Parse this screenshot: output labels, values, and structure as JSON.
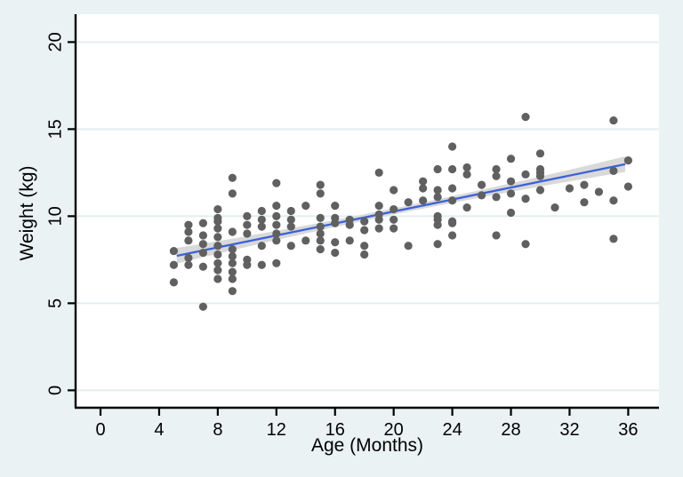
{
  "figure": {
    "background": "#EAF2F3",
    "plot_background": "#FFFFFF",
    "grid_color": "#E3EEF1",
    "axis_color": "#000000",
    "point_color": "#606060",
    "fit_line_color": "#3B62D9",
    "ci_band_color": "#D9D9D9"
  },
  "chart_data": {
    "type": "scatter",
    "title": "",
    "xlabel": "Age (Months)",
    "ylabel": "Weight (kg)",
    "x_ticks": [
      0,
      4,
      8,
      12,
      16,
      20,
      24,
      28,
      32,
      36
    ],
    "y_ticks": [
      0,
      5,
      10,
      15,
      20
    ],
    "xlim": [
      -1.7,
      38.1
    ],
    "ylim": [
      -1.0,
      21.6
    ],
    "grid": "horizontal",
    "legend": "none",
    "points": [
      [
        5,
        8.0
      ],
      [
        5,
        7.2
      ],
      [
        5,
        6.2
      ],
      [
        6,
        9.5
      ],
      [
        6,
        9.1
      ],
      [
        6,
        8.6
      ],
      [
        6,
        7.6
      ],
      [
        6,
        7.2
      ],
      [
        7,
        9.6
      ],
      [
        7,
        8.9
      ],
      [
        7,
        8.4
      ],
      [
        7,
        7.9
      ],
      [
        7,
        7.1
      ],
      [
        7,
        4.8
      ],
      [
        8,
        10.4
      ],
      [
        8,
        9.9
      ],
      [
        8,
        9.7
      ],
      [
        8,
        9.3
      ],
      [
        8,
        8.8
      ],
      [
        8,
        8.3
      ],
      [
        8,
        7.8
      ],
      [
        8,
        7.3
      ],
      [
        8,
        6.9
      ],
      [
        8,
        6.4
      ],
      [
        9,
        12.2
      ],
      [
        9,
        11.3
      ],
      [
        9,
        9.1
      ],
      [
        9,
        8.1
      ],
      [
        9,
        7.7
      ],
      [
        9,
        7.3
      ],
      [
        9,
        6.8
      ],
      [
        9,
        6.4
      ],
      [
        9,
        5.7
      ],
      [
        10,
        10.0
      ],
      [
        10,
        9.5
      ],
      [
        10,
        9.0
      ],
      [
        10,
        7.5
      ],
      [
        10,
        7.2
      ],
      [
        11,
        10.3
      ],
      [
        11,
        9.8
      ],
      [
        11,
        9.4
      ],
      [
        11,
        8.3
      ],
      [
        11,
        7.2
      ],
      [
        12,
        11.9
      ],
      [
        12,
        10.6
      ],
      [
        12,
        10.0
      ],
      [
        12,
        9.5
      ],
      [
        12,
        9.0
      ],
      [
        12,
        8.6
      ],
      [
        12,
        7.3
      ],
      [
        13,
        10.3
      ],
      [
        13,
        9.8
      ],
      [
        13,
        9.4
      ],
      [
        13,
        8.3
      ],
      [
        14,
        10.6
      ],
      [
        14,
        8.6
      ],
      [
        15,
        11.8
      ],
      [
        15,
        11.3
      ],
      [
        15,
        9.9
      ],
      [
        15,
        9.4
      ],
      [
        15,
        9.0
      ],
      [
        15,
        8.6
      ],
      [
        15,
        8.1
      ],
      [
        16,
        10.6
      ],
      [
        16,
        9.9
      ],
      [
        16,
        9.6
      ],
      [
        16,
        8.5
      ],
      [
        16,
        7.9
      ],
      [
        17,
        9.8
      ],
      [
        17,
        9.5
      ],
      [
        17,
        8.6
      ],
      [
        18,
        9.7
      ],
      [
        18,
        9.2
      ],
      [
        18,
        8.3
      ],
      [
        18,
        7.8
      ],
      [
        19,
        12.5
      ],
      [
        19,
        10.6
      ],
      [
        19,
        10.1
      ],
      [
        19,
        9.8
      ],
      [
        19,
        9.3
      ],
      [
        20,
        11.5
      ],
      [
        20,
        10.4
      ],
      [
        20,
        9.8
      ],
      [
        20,
        9.3
      ],
      [
        21,
        10.8
      ],
      [
        21,
        8.3
      ],
      [
        22,
        12.0
      ],
      [
        22,
        11.6
      ],
      [
        22,
        10.9
      ],
      [
        23,
        12.7
      ],
      [
        23,
        11.5
      ],
      [
        23,
        11.1
      ],
      [
        23,
        10.0
      ],
      [
        23,
        9.8
      ],
      [
        23,
        9.5
      ],
      [
        23,
        8.4
      ],
      [
        24,
        14.0
      ],
      [
        24,
        12.7
      ],
      [
        24,
        11.6
      ],
      [
        24,
        10.9
      ],
      [
        24,
        9.7
      ],
      [
        24,
        9.6
      ],
      [
        24,
        8.9
      ],
      [
        25,
        12.8
      ],
      [
        25,
        12.4
      ],
      [
        25,
        10.5
      ],
      [
        26,
        11.8
      ],
      [
        26,
        11.2
      ],
      [
        27,
        12.7
      ],
      [
        27,
        12.3
      ],
      [
        27,
        11.1
      ],
      [
        27,
        8.9
      ],
      [
        28,
        13.3
      ],
      [
        28,
        12.0
      ],
      [
        28,
        11.3
      ],
      [
        28,
        10.2
      ],
      [
        29,
        15.7
      ],
      [
        29,
        12.4
      ],
      [
        29,
        11.0
      ],
      [
        29,
        8.4
      ],
      [
        30,
        13.6
      ],
      [
        30,
        12.7
      ],
      [
        30,
        12.5
      ],
      [
        30,
        12.3
      ],
      [
        30,
        11.5
      ],
      [
        31,
        10.5
      ],
      [
        32,
        11.6
      ],
      [
        33,
        11.8
      ],
      [
        33,
        10.8
      ],
      [
        34,
        11.4
      ],
      [
        35,
        15.5
      ],
      [
        35,
        12.6
      ],
      [
        35,
        10.9
      ],
      [
        35,
        8.7
      ],
      [
        36,
        13.2
      ],
      [
        36,
        11.7
      ]
    ],
    "fit_line": {
      "type": "linear",
      "intercept": 6.83,
      "slope": 0.172,
      "x_start": 5.2,
      "x_end": 35.8
    },
    "ci_band": {
      "half_width_center": 0.18,
      "half_width_ends": 0.45,
      "x_center": 20.5
    }
  }
}
